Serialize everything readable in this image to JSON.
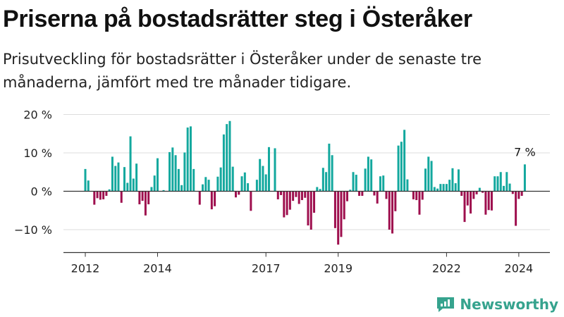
{
  "title": "Priserna på bostadsrätter steg i Österåker",
  "subtitle": "Prisutveckling för bostadsrätter i Österåker under de senaste tre månaderna, jämfört med tre månader tidigare.",
  "brand": {
    "name": "Newsworthy",
    "icon": "newsworthy-logo-icon",
    "color": "#36a38e"
  },
  "colors": {
    "positive": "#13a89e",
    "negative": "#9e0f4e",
    "axis": "#333333",
    "grid": "#dddddd"
  },
  "chart_data": {
    "type": "bar",
    "ylim": [
      -15,
      20
    ],
    "y_ticks": [
      {
        "value": 20,
        "label": "20 %"
      },
      {
        "value": 10,
        "label": "10 %"
      },
      {
        "value": 0,
        "label": "0 %"
      },
      {
        "value": -10,
        "label": "−10 %"
      }
    ],
    "x_ticks": [
      {
        "index": 0,
        "label": "2012"
      },
      {
        "index": 24,
        "label": "2014"
      },
      {
        "index": 60,
        "label": "2017"
      },
      {
        "index": 84,
        "label": "2019"
      },
      {
        "index": 120,
        "label": "2022"
      },
      {
        "index": 144,
        "label": "2024"
      }
    ],
    "annotation": {
      "index": 146,
      "label": "7 %"
    },
    "values": [
      5.8,
      2.8,
      0,
      -3.5,
      -1.8,
      -2.2,
      -2.1,
      -1.2,
      0.5,
      9.0,
      6.6,
      7.5,
      -3.0,
      6.3,
      2.2,
      14.3,
      3.3,
      7.2,
      -3.4,
      -2.5,
      -6.3,
      -3.4,
      1.1,
      4.1,
      8.6,
      0,
      0.3,
      0,
      10.2,
      11.4,
      9.4,
      5.8,
      1.6,
      10.1,
      16.6,
      16.9,
      5.8,
      0,
      -3.5,
      1.8,
      3.7,
      3.0,
      -4.7,
      -3.9,
      3.8,
      6.2,
      14.8,
      17.5,
      18.3,
      6.4,
      -1.6,
      -0.9,
      3.9,
      4.9,
      2.1,
      -5.1,
      0,
      3.0,
      8.4,
      6.6,
      4.4,
      11.5,
      0,
      11.2,
      -2.1,
      -1.0,
      -6.8,
      -6.2,
      -4.8,
      -2.5,
      -1.5,
      -3.3,
      -2.3,
      -1.7,
      -8.9,
      -10.0,
      -5.6,
      1.1,
      0.6,
      6.1,
      5.0,
      12.4,
      9.4,
      -9.6,
      -13.9,
      -11.9,
      -7.3,
      -2.6,
      0.4,
      5.0,
      4.3,
      -1.2,
      -1.2,
      5.9,
      9.0,
      8.3,
      -1.1,
      -3.2,
      3.9,
      4.1,
      -2.0,
      -10.0,
      -11.0,
      -5.2,
      11.9,
      12.9,
      16.0,
      3.1,
      0,
      -2.1,
      -2.3,
      -6.1,
      -2.2,
      5.9,
      9.0,
      7.9,
      1.1,
      0.7,
      1.9,
      1.9,
      1.9,
      3.0,
      6.0,
      2.1,
      5.7,
      -1.2,
      -8.0,
      -3.7,
      -5.8,
      -2.0,
      -0.8,
      0.9,
      -0.4,
      -6.1,
      -4.9,
      -5.0,
      3.9,
      3.9,
      5.0,
      1.4,
      5.0,
      2.0,
      -0.7,
      -9.0,
      -2.0,
      -1.2,
      7.0
    ]
  }
}
